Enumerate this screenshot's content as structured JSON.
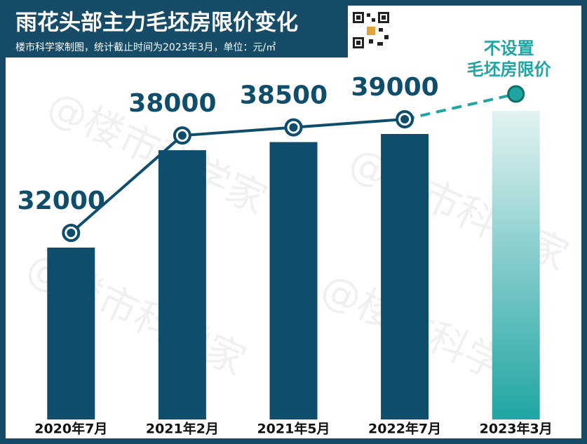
{
  "chart_data": {
    "type": "bar",
    "title": "雨花头部主力毛坯房限价变化",
    "subtitle": "楼市科学家制图，统计截止时间为2023年3月，单位：元/㎡",
    "watermark": "@楼市科学家",
    "annotation": [
      "不设置",
      "毛坯房限价"
    ],
    "categories": [
      "2020年7月",
      "2021年2月",
      "2021年5月",
      "2022年7月",
      "2023年3月"
    ],
    "values": [
      32000,
      38000,
      38500,
      39000,
      null
    ],
    "color": "#0e4d6b",
    "line_color": "#0e4d6b",
    "accent_color": "#1fa5a2"
  }
}
